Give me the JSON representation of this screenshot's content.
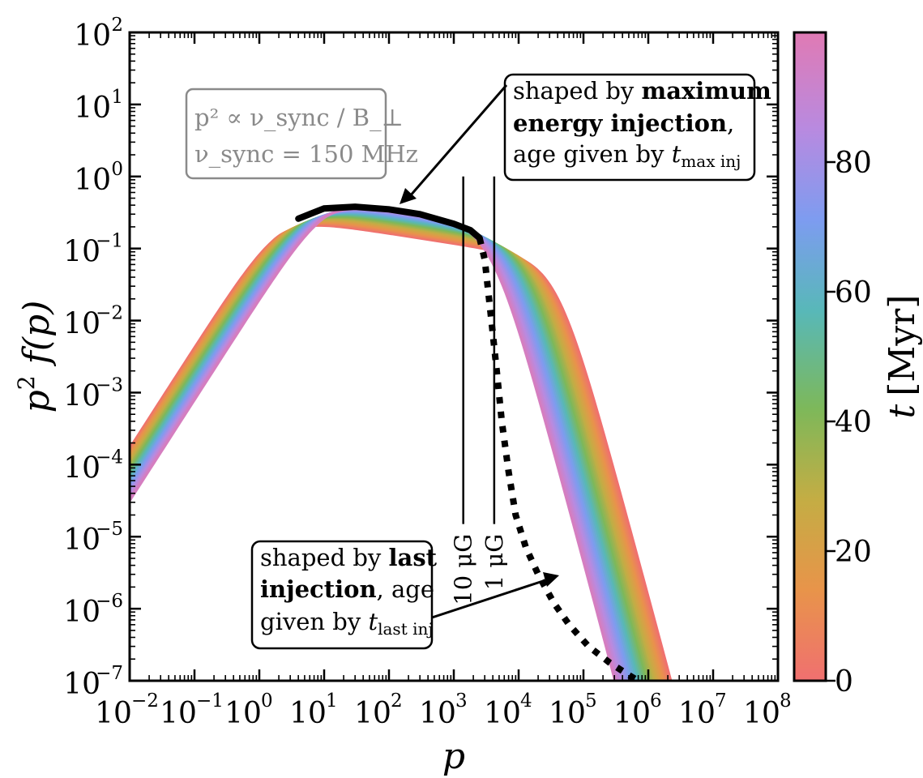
{
  "chart_data": {
    "type": "line",
    "xlabel": "p",
    "ylabel_base": "p",
    "ylabel_sup": "2",
    "ylabel_rest": " f(p)",
    "xscale": "log",
    "yscale": "log",
    "xlim": [
      0.01,
      100000000
    ],
    "ylim": [
      1e-07,
      100
    ],
    "x_ticks": [
      {
        "base": "10",
        "exp": "−2",
        "value": 0.01
      },
      {
        "base": "10",
        "exp": "−1",
        "value": 0.1
      },
      {
        "base": "10",
        "exp": "0",
        "value": 1
      },
      {
        "base": "10",
        "exp": "1",
        "value": 10
      },
      {
        "base": "10",
        "exp": "2",
        "value": 100
      },
      {
        "base": "10",
        "exp": "3",
        "value": 1000
      },
      {
        "base": "10",
        "exp": "4",
        "value": 10000
      },
      {
        "base": "10",
        "exp": "5",
        "value": 100000
      },
      {
        "base": "10",
        "exp": "6",
        "value": 1000000
      },
      {
        "base": "10",
        "exp": "7",
        "value": 10000000
      },
      {
        "base": "10",
        "exp": "8",
        "value": 100000000
      }
    ],
    "y_ticks": [
      {
        "base": "10",
        "exp": "−7",
        "value": 1e-07
      },
      {
        "base": "10",
        "exp": "−6",
        "value": 1e-06
      },
      {
        "base": "10",
        "exp": "−5",
        "value": 1e-05
      },
      {
        "base": "10",
        "exp": "−4",
        "value": 0.0001
      },
      {
        "base": "10",
        "exp": "−3",
        "value": 0.001
      },
      {
        "base": "10",
        "exp": "−2",
        "value": 0.01
      },
      {
        "base": "10",
        "exp": "−1",
        "value": 0.1
      },
      {
        "base": "10",
        "exp": "0",
        "value": 1
      },
      {
        "base": "10",
        "exp": "1",
        "value": 10
      },
      {
        "base": "10",
        "exp": "2",
        "value": 100
      }
    ],
    "colorbar": {
      "label_var": "t",
      "label_unit": "[Myr]",
      "range": [
        0,
        100
      ],
      "ticks": [
        {
          "label": "0",
          "value": 0
        },
        {
          "label": "20",
          "value": 20
        },
        {
          "label": "40",
          "value": 40
        },
        {
          "label": "60",
          "value": 60
        },
        {
          "label": "80",
          "value": 80
        }
      ],
      "colors": [
        "#f07070",
        "#e8944a",
        "#c4ad44",
        "#7db85a",
        "#58b8b8",
        "#7d9cf0",
        "#b88ae0",
        "#e07ab4"
      ]
    },
    "series_family": {
      "count": 30,
      "time_range_myr": [
        0,
        96
      ],
      "description": "one spectrum per injection time"
    },
    "max_injection_curve": {
      "x": [
        4,
        10,
        30,
        100,
        300,
        1000,
        1800,
        2500
      ],
      "y": [
        0.26,
        0.36,
        0.38,
        0.35,
        0.3,
        0.22,
        0.18,
        0.14
      ]
    },
    "last_injection_curve": {
      "x": [
        2500,
        3000,
        3800,
        4600,
        5500,
        7000,
        9000,
        13000,
        20000,
        35000,
        60000,
        120000,
        250000,
        500000,
        700000
      ],
      "y": [
        0.14,
        0.07,
        0.01,
        0.002,
        0.0004,
        8e-05,
        2e-05,
        7e-06,
        3e-06,
        1.2e-06,
        6e-07,
        3e-07,
        1.8e-07,
        1.2e-07,
        1e-07
      ]
    },
    "vertical_lines": [
      {
        "label": "10 μG",
        "x": 1400,
        "y_top": 1,
        "y_bottom": 1.5e-05
      },
      {
        "label": "1 μG",
        "x": 4200,
        "y_top": 1,
        "y_bottom": 1.5e-05
      }
    ],
    "annotations": {
      "grey_box": {
        "line1": "p² ∝ ν_sync / B_⊥",
        "line2": "ν_sync = 150 MHz"
      },
      "max_box": {
        "l1_pre": "shaped by ",
        "l1_bold": "maximum",
        "l2_bold": "energy injection",
        "l2_post": ",",
        "l3_pre": "age given by ",
        "l3_var": "t",
        "l3_sub": "max inj"
      },
      "last_box": {
        "l1_pre": "shaped by ",
        "l1_bold": "last",
        "l2_bold": "injection",
        "l2_post": ", age",
        "l3_pre": "given by ",
        "l3_var": "t",
        "l3_sub": "last inj"
      }
    }
  }
}
